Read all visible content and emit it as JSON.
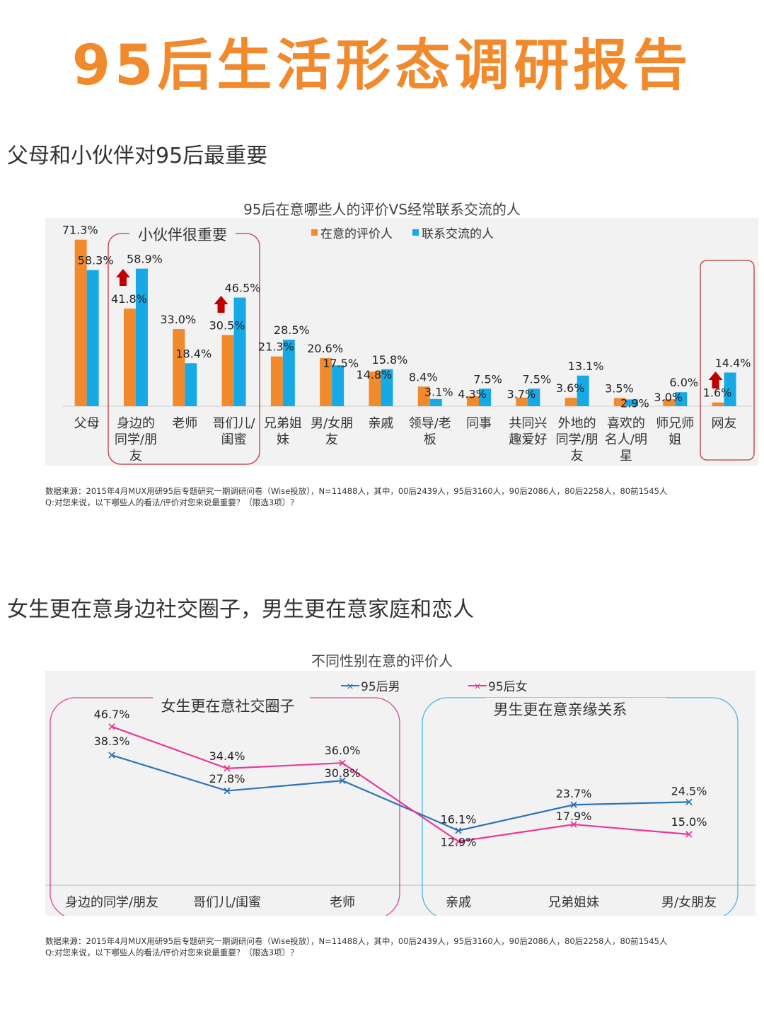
{
  "page": {
    "title": "95后生活形态调研报告"
  },
  "section1": {
    "heading": "父母和小伙伴对95后最重要"
  },
  "section2": {
    "heading": "女生更在意身边社交圈子，男生更在意家庭和恋人"
  },
  "colors": {
    "orange": "#f08a2c",
    "blue": "#16a9e6",
    "line_male": "#2b74b8",
    "line_female": "#e8399a",
    "box_red": "#c0393b",
    "box_pink": "#d8479a",
    "box_blue": "#4ab7e0",
    "arrow": "#c00000"
  },
  "chart1": {
    "callout_box": "小伙伴很重要",
    "source_line1": "数据来源：2015年4月MUX用研95后专题研究一期调研问卷（Wise投放），N=11488人，其中，00后2439人，95后3160人，90后2086人，80后2258人，80前1545人",
    "source_line2": "Q:对您来说，以下哪些人的看法/评价对您来说最重要？（限选3项）？"
  },
  "chart2": {
    "callout_left": "女生更在意社交圈子",
    "callout_right": "男生更在意亲缘关系",
    "source_line1": "数据来源：2015年4月MUX用研95后专题研究一期调研问卷（Wise投放），N=11488人，其中，00后2439人，95后3160人，90后2086人，80后2258人，80前1545人",
    "source_line2": "Q:对您来说，以下哪些人的看法/评价对您来说最重要？（限选3项）？"
  },
  "chart_data": [
    {
      "type": "bar",
      "title": "95后在意哪些人的评价VS经常联系交流的人",
      "categories": [
        "父母",
        "身边的同学/朋友",
        "老师",
        "哥们儿/闺蜜",
        "兄弟姐妹",
        "男/女朋友",
        "亲戚",
        "领导/老板",
        "同事",
        "共同兴趣爱好",
        "外地的同学/朋友",
        "喜欢的名人/明星",
        "师兄师姐",
        "网友"
      ],
      "category_lines": [
        [
          "父母"
        ],
        [
          "身边的",
          "同学/朋",
          "友"
        ],
        [
          "老师"
        ],
        [
          "哥们儿/",
          "闺蜜"
        ],
        [
          "兄弟姐",
          "妹"
        ],
        [
          "男/女朋",
          "友"
        ],
        [
          "亲戚"
        ],
        [
          "领导/老",
          "板"
        ],
        [
          "同事"
        ],
        [
          "共同兴",
          "趣爱好"
        ],
        [
          "外地的",
          "同学/朋",
          "友"
        ],
        [
          "喜欢的",
          "名人/明",
          "星"
        ],
        [
          "师兄师",
          "姐"
        ],
        [
          "网友"
        ]
      ],
      "series": [
        {
          "name": "在意的评价人",
          "values": [
            71.3,
            41.8,
            33.0,
            30.5,
            21.3,
            20.6,
            14.8,
            8.4,
            4.3,
            3.7,
            3.6,
            3.5,
            3.0,
            1.6
          ],
          "labels": [
            "71.3%",
            "41.8%",
            "33.0%",
            "30.5%",
            "21.3%",
            "20.6%",
            "14.8%",
            "8.4%",
            "4.3%",
            "3.7%",
            "3.6%",
            "3.5%",
            "3.0%",
            "1.6%"
          ]
        },
        {
          "name": "联系交流的人",
          "values": [
            58.3,
            58.9,
            18.4,
            46.5,
            28.5,
            17.5,
            15.8,
            3.1,
            7.5,
            7.5,
            13.1,
            2.9,
            6.0,
            14.4
          ],
          "labels": [
            "58.3%",
            "58.9%",
            "18.4%",
            "46.5%",
            "28.5%",
            "17.5%",
            "15.8%",
            "3.1%",
            "7.5%",
            "7.5%",
            "13.1%",
            "2.9%",
            "6.0%",
            "14.4%"
          ]
        }
      ],
      "ylim": [
        0,
        75
      ],
      "legend": "top"
    },
    {
      "type": "line",
      "title": "不同性别在意的评价人",
      "categories": [
        "身边的同学/朋友",
        "哥们儿/闺蜜",
        "老师",
        "亲戚",
        "兄弟姐妹",
        "男/女朋友"
      ],
      "series": [
        {
          "name": "95后男",
          "values": [
            38.3,
            27.8,
            30.8,
            16.1,
            23.7,
            24.5
          ],
          "labels": [
            "38.3%",
            "27.8%",
            "30.8%",
            "16.1%",
            "23.7%",
            "24.5%"
          ]
        },
        {
          "name": "95后女",
          "values": [
            46.7,
            34.4,
            36.0,
            12.9,
            17.9,
            15.0
          ],
          "labels": [
            "46.7%",
            "34.4%",
            "36.0%",
            "12.9%",
            "17.9%",
            "15.0%"
          ]
        }
      ],
      "ylim": [
        0,
        55
      ],
      "legend": "top"
    }
  ]
}
